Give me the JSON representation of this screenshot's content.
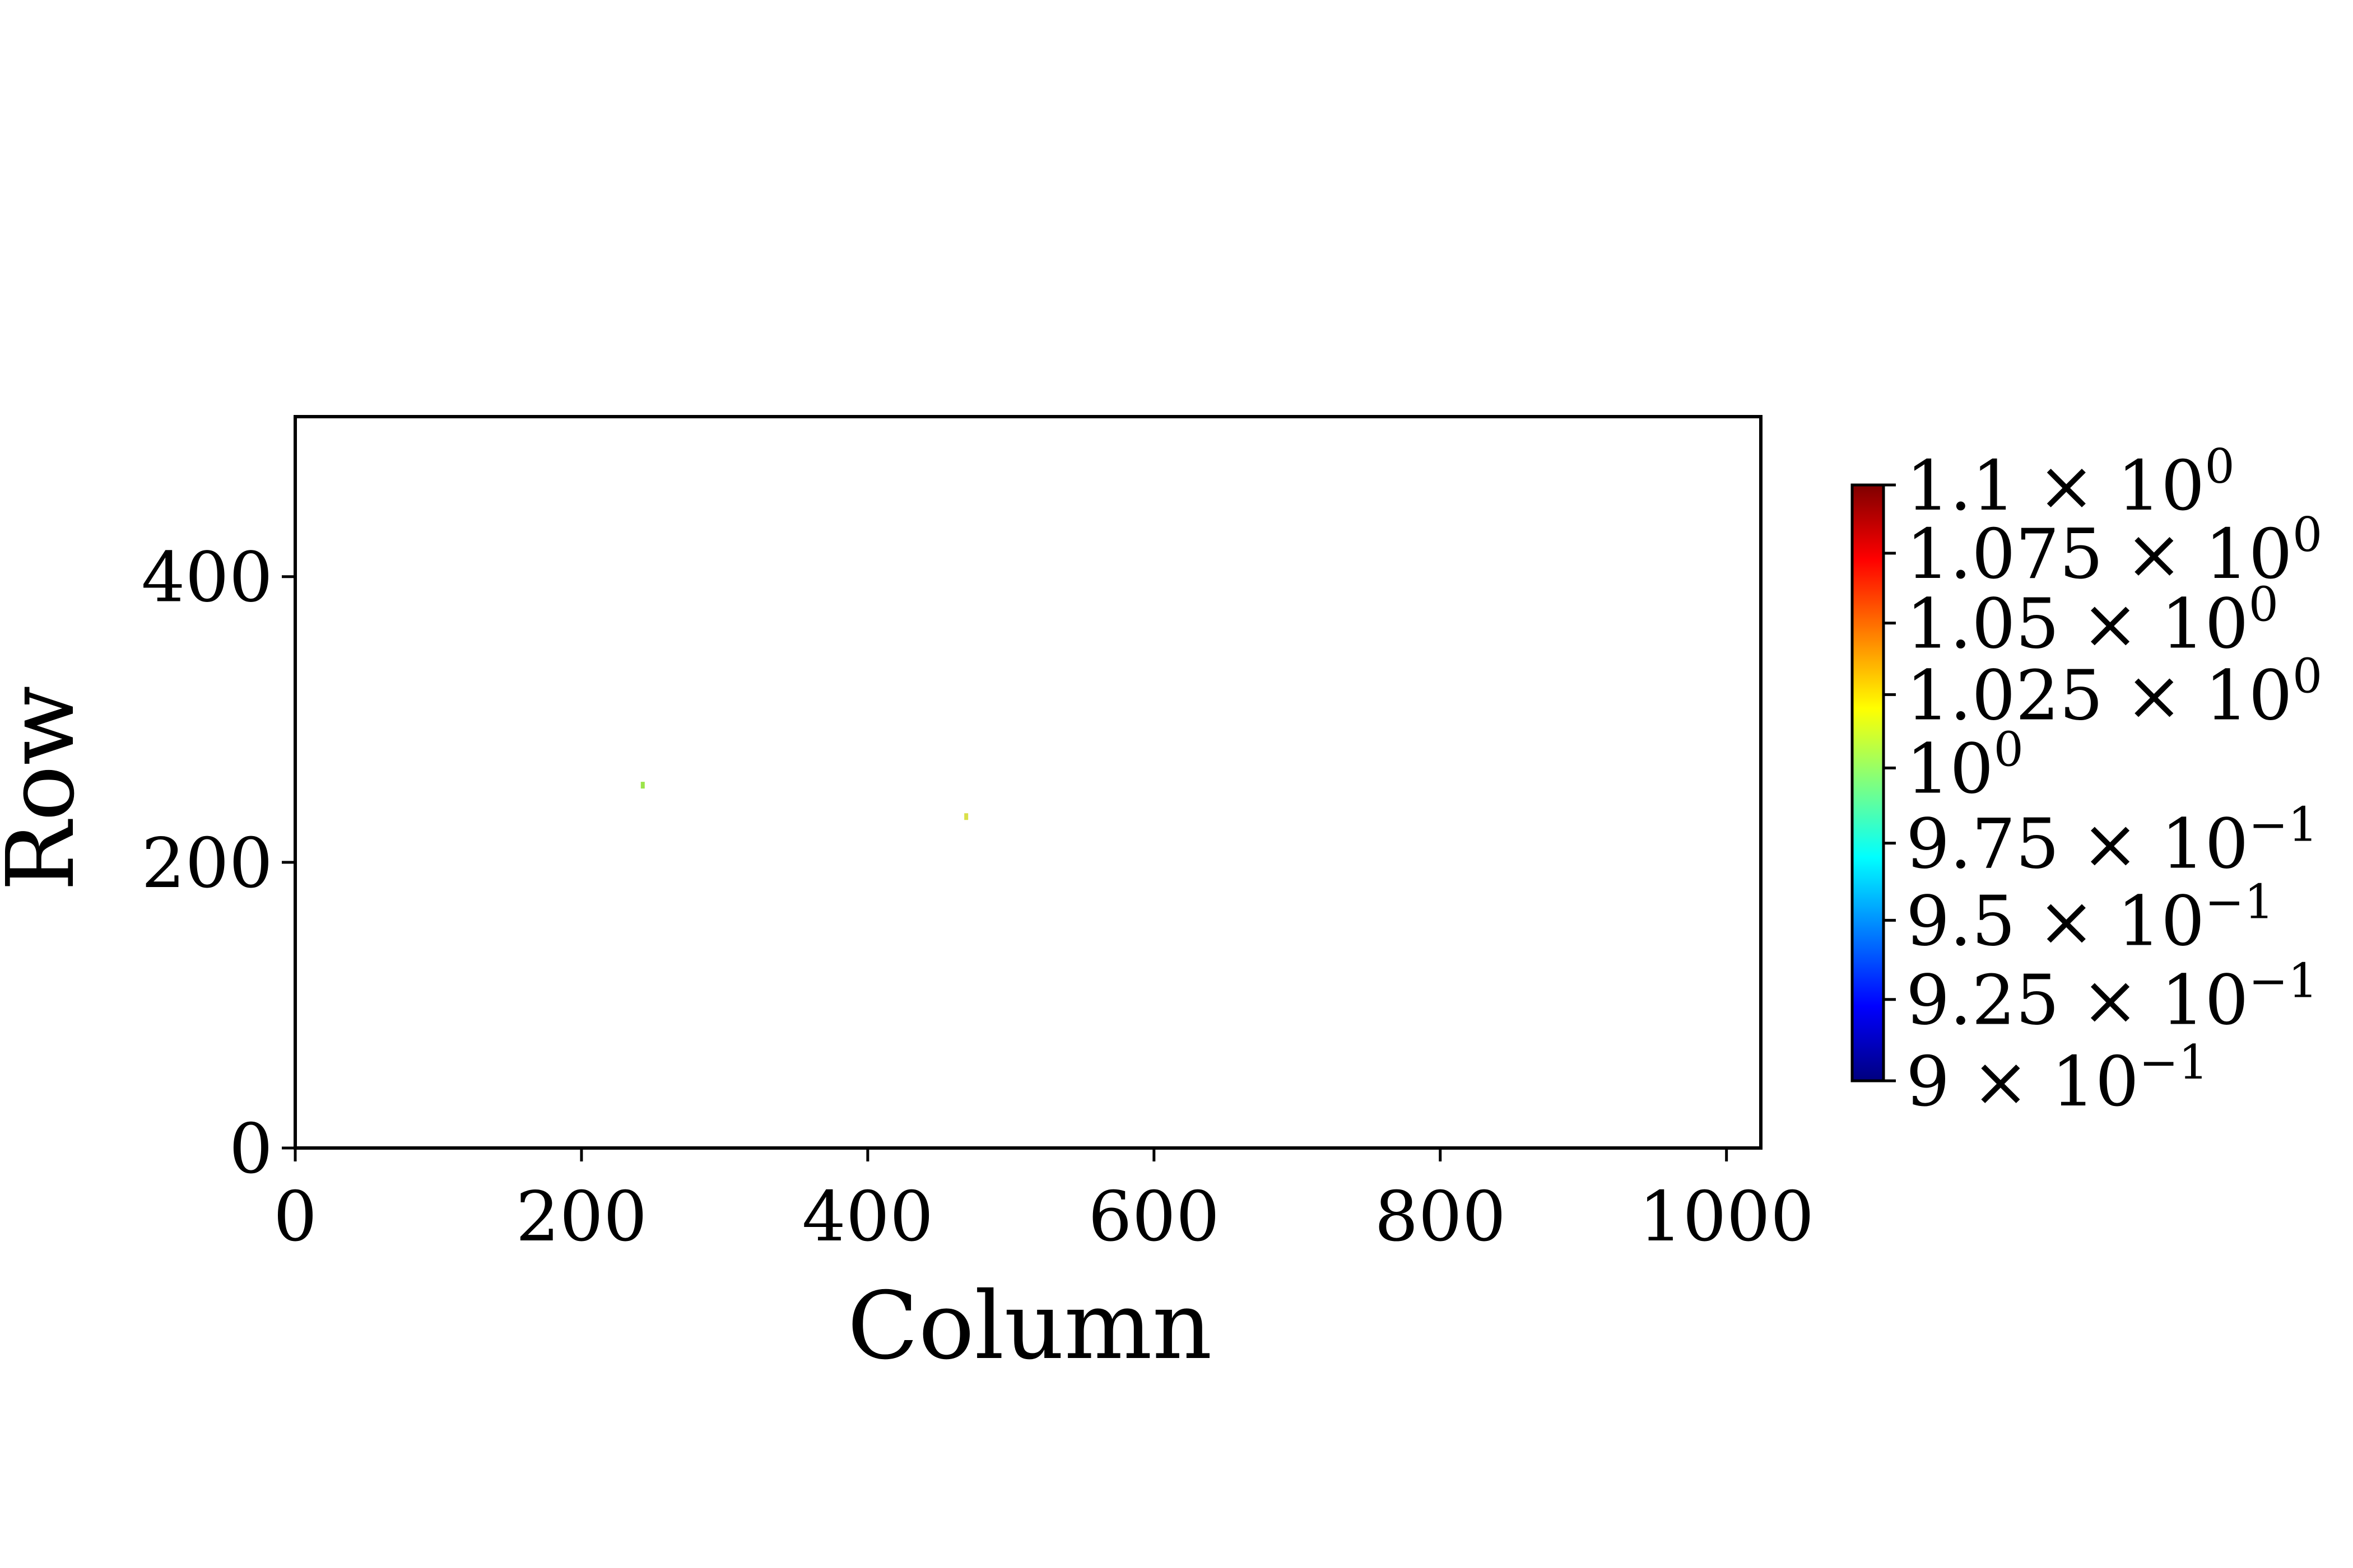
{
  "colors": {
    "background": "#ffffff",
    "axis": "#000000",
    "colormap": [
      "#00007f",
      "#0000ff",
      "#007fff",
      "#00ffff",
      "#7fff7f",
      "#ffff00",
      "#ff7f00",
      "#ff0000",
      "#7f0000"
    ]
  },
  "chart_data": {
    "type": "heatmap",
    "xlabel": "Column",
    "ylabel": "Row",
    "xlim": [
      0,
      1024
    ],
    "ylim": [
      0,
      512
    ],
    "x_ticks": [
      0,
      200,
      400,
      600,
      800,
      1000
    ],
    "y_ticks": [
      0,
      200,
      400
    ],
    "grid": false,
    "points": [
      {
        "x": 243,
        "y": 254,
        "value": 1.0,
        "color": "#9be44a"
      },
      {
        "x": 469,
        "y": 232,
        "value": 1.02,
        "color": "#d9e04a"
      }
    ],
    "colorbar": {
      "colormap": "jet",
      "scale": "log",
      "range": [
        0.9,
        1.1
      ],
      "ticks": [
        {
          "value": 1.1,
          "mantissa": "1.1",
          "exponent": "0"
        },
        {
          "value": 1.075,
          "mantissa": "1.075",
          "exponent": "0"
        },
        {
          "value": 1.05,
          "mantissa": "1.05",
          "exponent": "0"
        },
        {
          "value": 1.025,
          "mantissa": "1.025",
          "exponent": "0"
        },
        {
          "value": 1.0,
          "mantissa": "",
          "exponent": "0"
        },
        {
          "value": 0.975,
          "mantissa": "9.75",
          "exponent": "−1"
        },
        {
          "value": 0.95,
          "mantissa": "9.5",
          "exponent": "−1"
        },
        {
          "value": 0.925,
          "mantissa": "9.25",
          "exponent": "−1"
        },
        {
          "value": 0.9,
          "mantissa": "9",
          "exponent": "−1"
        }
      ]
    }
  }
}
